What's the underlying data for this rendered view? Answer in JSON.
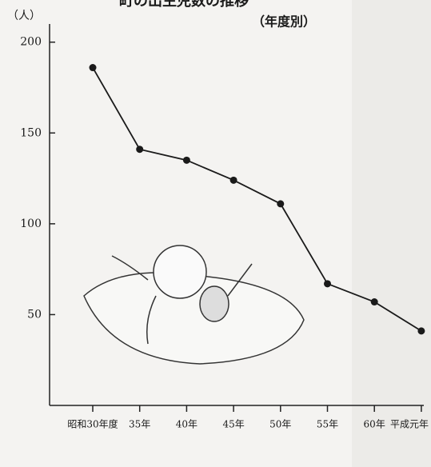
{
  "chart_data": {
    "type": "line",
    "title": "町の出生児数の推移",
    "subtitle": "（年度別）",
    "y_label": "（人）",
    "categories": [
      "昭和30年度",
      "35年",
      "40年",
      "45年",
      "50年",
      "55年",
      "60年",
      "平成元年"
    ],
    "series": [
      {
        "color": "#1a1a1a",
        "values": [
          186,
          141,
          135,
          124,
          111,
          67,
          57,
          41
        ]
      }
    ],
    "ylim": [
      0,
      210
    ],
    "yticks": [
      50,
      100,
      150,
      200
    ],
    "grid": false
  }
}
